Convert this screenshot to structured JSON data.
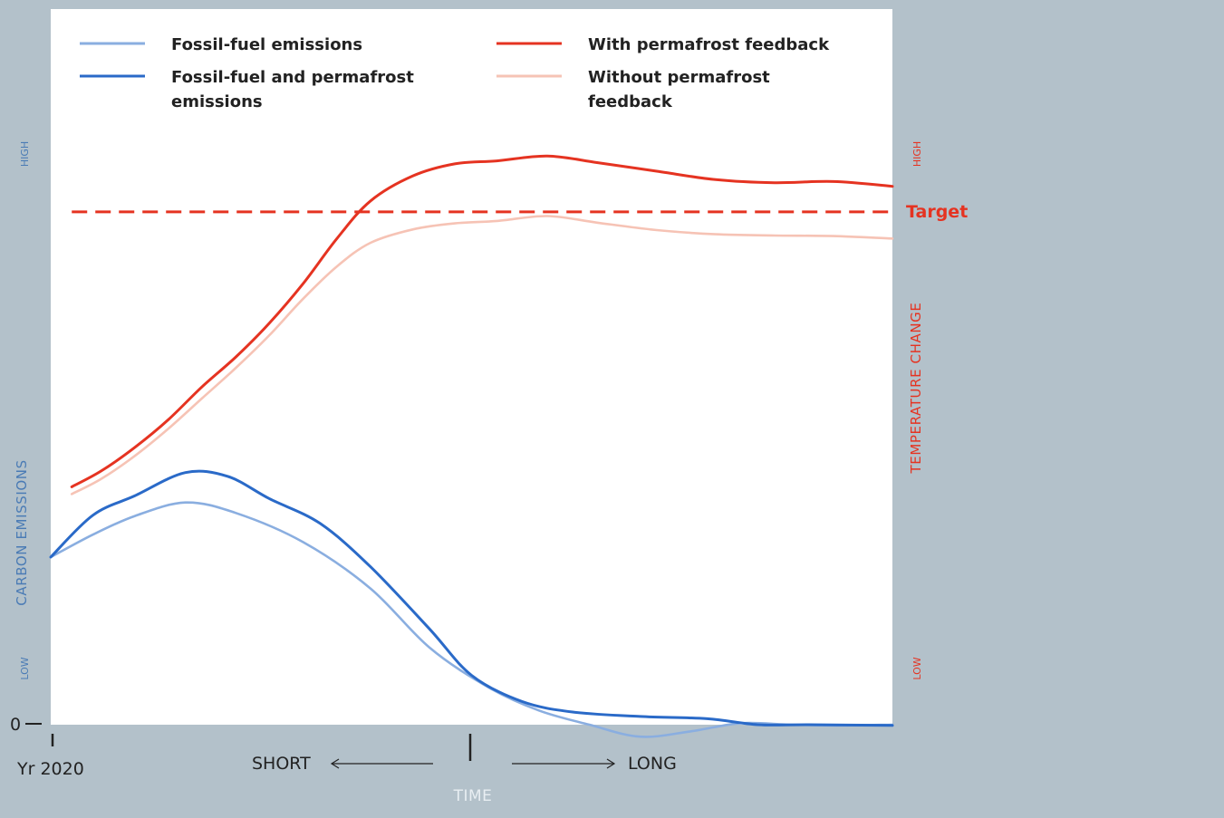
{
  "colors": {
    "background": "#b3c1ca",
    "plot_background": "#ffffff",
    "fossil_fuel_emissions": "#8aaee0",
    "fossil_fuel_and_permafrost": "#2a6ac8",
    "with_permafrost_feedback": "#e53321",
    "without_permafrost_feedback": "#f6c3b5",
    "target": "#e53321",
    "left_axis_label": "#4a7bb5",
    "time_label": "#e8eef2",
    "dark_text": "#222222"
  },
  "chart_data": {
    "type": "line",
    "xlabel": "TIME",
    "x_range": [
      0,
      100
    ],
    "x_ticks": [
      {
        "x": 0,
        "label": "Yr 2020"
      },
      {
        "x": 50,
        "label": ""
      }
    ],
    "x_direction_labels": {
      "short": "SHORT",
      "long": "LONG"
    },
    "left_axis": {
      "label": "CARBON EMISSIONS",
      "high_label": "HIGH",
      "low_label": "LOW",
      "zero_label": "0",
      "ylim": [
        0,
        100
      ]
    },
    "right_axis": {
      "label": "TEMPERATURE CHANGE",
      "high_label": "HIGH",
      "low_label": "LOW",
      "ylim": [
        0,
        100
      ]
    },
    "legend_position": "top",
    "series": [
      {
        "name": "Fossil-fuel emissions",
        "axis": "left",
        "style": "fossil_fuel_emissions",
        "x": [
          0,
          5,
          10,
          16,
          22,
          30,
          38,
          45,
          52,
          58,
          64,
          70,
          76,
          82,
          88,
          94,
          100
        ],
        "y": [
          22.4,
          25.4,
          27.9,
          29.7,
          28.3,
          24.4,
          18.2,
          10.3,
          5.0,
          1.9,
          0.0,
          -1.6,
          -0.9,
          0.2,
          0.0,
          -0.1,
          0.0
        ]
      },
      {
        "name": "Fossil-fuel and permafrost emissions",
        "axis": "left",
        "style": "fossil_fuel_and_permafrost",
        "x": [
          0,
          5,
          10,
          16,
          21,
          26,
          32,
          38,
          45,
          50,
          56,
          62,
          70,
          78,
          84,
          90,
          100
        ],
        "y": [
          22.4,
          28.0,
          30.6,
          33.7,
          33.2,
          30.2,
          26.9,
          21.1,
          12.8,
          6.6,
          3.1,
          1.7,
          1.1,
          0.8,
          0.0,
          0.0,
          -0.1
        ]
      },
      {
        "name": "With permafrost feedback",
        "axis": "right",
        "style": "with_permafrost_feedback",
        "x": [
          2.5,
          6,
          10,
          14,
          18,
          22,
          26,
          30,
          34,
          38,
          43,
          48,
          53,
          59,
          65,
          72,
          79,
          86,
          93,
          100
        ],
        "y": [
          39.2,
          41.8,
          45.7,
          50.3,
          55.7,
          60.6,
          66.2,
          72.7,
          80.1,
          86.3,
          90.4,
          92.4,
          92.9,
          93.7,
          92.6,
          91.2,
          89.8,
          89.3,
          89.5,
          88.7
        ]
      },
      {
        "name": "Without permafrost feedback",
        "axis": "right",
        "style": "without_permafrost_feedback",
        "x": [
          2.5,
          6,
          10,
          14,
          18,
          22,
          26,
          30,
          34,
          38,
          43,
          48,
          53,
          59,
          65,
          72,
          79,
          86,
          93,
          100
        ],
        "y": [
          38.0,
          40.5,
          44.3,
          48.8,
          53.8,
          58.8,
          64.2,
          70.2,
          75.5,
          79.4,
          81.6,
          82.6,
          83.0,
          83.8,
          82.7,
          81.5,
          80.8,
          80.6,
          80.5,
          80.1
        ]
      }
    ],
    "reference_lines": [
      {
        "name": "Target",
        "axis": "right",
        "y": 84.5,
        "x_range": [
          2.5,
          100
        ],
        "style": "dashed"
      }
    ]
  }
}
